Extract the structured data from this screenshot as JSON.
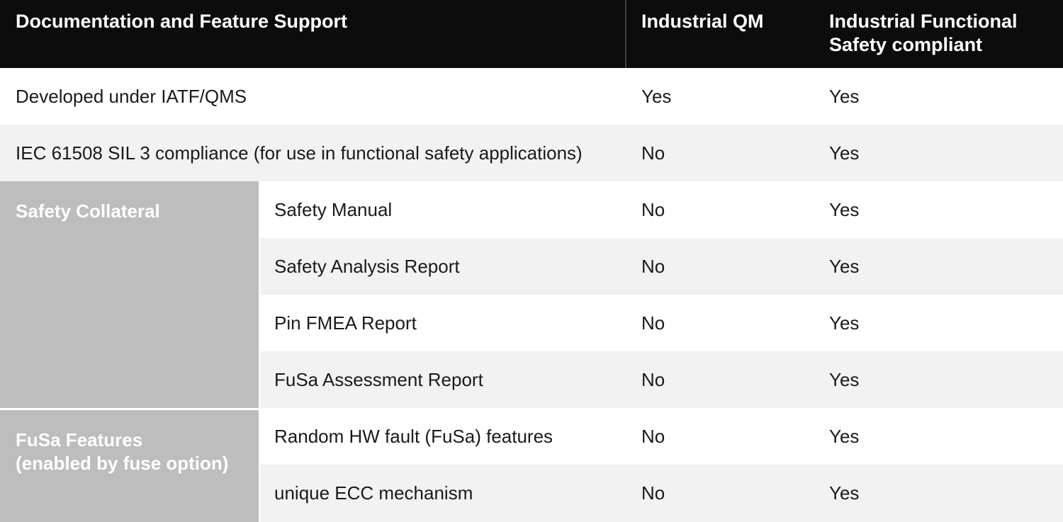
{
  "table": {
    "header": {
      "feature": "Documentation and Feature Support",
      "industrial_qm": "Industrial QM",
      "industrial_fusa": "Industrial Functional Safety compliant"
    },
    "simple_rows": [
      {
        "feature": "Developed under IATF/QMS",
        "qm": "Yes",
        "fusa": "Yes"
      },
      {
        "feature": "IEC 61508 SIL 3 compliance (for use in functional safety applications)",
        "qm": "No",
        "fusa": "Yes"
      }
    ],
    "groups": [
      {
        "label": "Safety Collateral",
        "lines": [
          "Safety Collateral"
        ],
        "rows": [
          {
            "feature": "Safety Manual",
            "qm": "No",
            "fusa": "Yes"
          },
          {
            "feature": "Safety Analysis Report",
            "qm": "No",
            "fusa": "Yes"
          },
          {
            "feature": "Pin FMEA Report",
            "qm": "No",
            "fusa": "Yes"
          },
          {
            "feature": "FuSa Assessment Report",
            "qm": "No",
            "fusa": "Yes"
          }
        ]
      },
      {
        "label": "FuSa Features (enabled by fuse option)",
        "lines": [
          "FuSa Features",
          "(enabled by fuse option)"
        ],
        "rows": [
          {
            "feature": "Random HW fault (FuSa) features",
            "qm": "No",
            "fusa": "Yes"
          },
          {
            "feature": "unique ECC mechanism",
            "qm": "No",
            "fusa": "Yes"
          }
        ]
      }
    ]
  },
  "colors": {
    "header_bg": "#0c0c0c",
    "header_divider": "#3f3f3f",
    "group_bg": "#bdbdbd",
    "alt_row_bg": "#f2f2f2",
    "body_text": "#1a1a1a"
  }
}
